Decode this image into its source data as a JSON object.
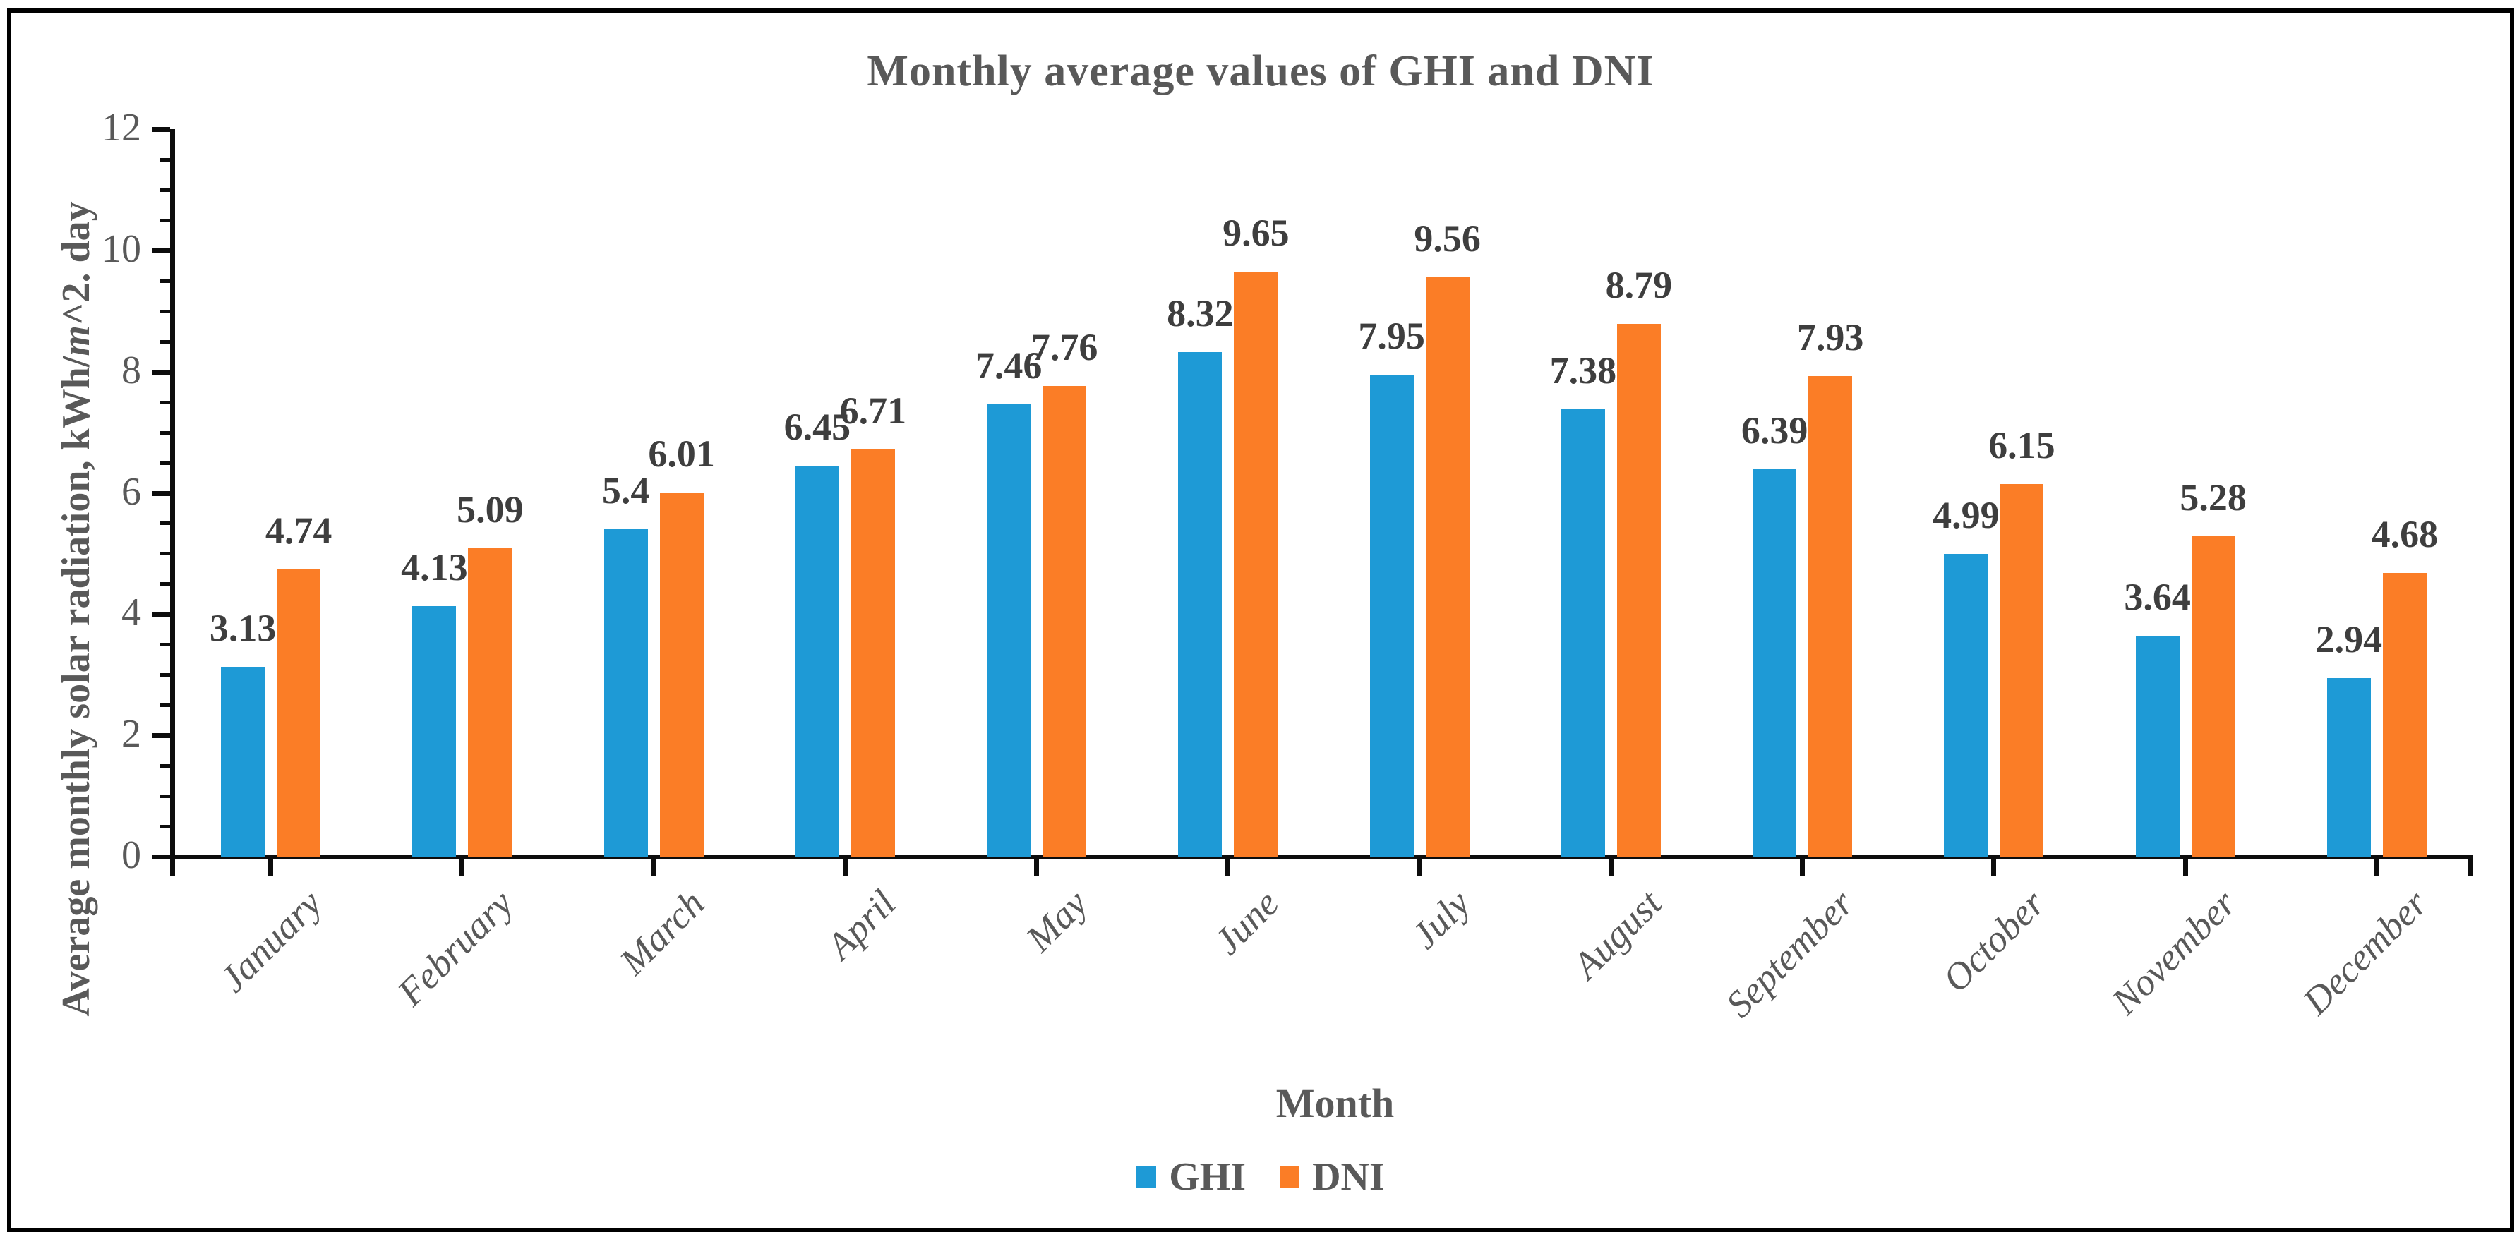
{
  "chart_data": {
    "type": "bar",
    "title": "Monthly average values of GHI and DNI",
    "categories": [
      "January",
      "February",
      "March",
      "April",
      "May",
      "June",
      "July",
      "August",
      "September",
      "October",
      "November",
      "December"
    ],
    "series": [
      {
        "name": "GHI",
        "color": "#1E9AD6",
        "values": [
          3.13,
          4.13,
          5.4,
          6.45,
          7.46,
          8.32,
          7.95,
          7.38,
          6.39,
          4.99,
          3.64,
          2.94
        ],
        "labels": [
          "3.13",
          "4.13",
          "5.4",
          "6.45",
          "7.46",
          "8.32",
          "7.95",
          "7.38",
          "6.39",
          "4.99",
          "3.64",
          "2.94"
        ]
      },
      {
        "name": "DNI",
        "color": "#FB7D26",
        "values": [
          4.74,
          5.09,
          6.01,
          6.71,
          7.76,
          9.65,
          9.56,
          8.79,
          7.93,
          6.15,
          5.28,
          4.68
        ],
        "labels": [
          "4.74",
          "5.09",
          "6.01",
          "6.71",
          "7.76",
          "9.65",
          "9.56",
          "8.79",
          "7.93",
          "6.15",
          "5.28",
          "4.68"
        ]
      }
    ],
    "xlabel": "Month",
    "ylabel": {
      "prefix": "Average monthly solar radiation, kWh/",
      "italic": "m",
      "suffix": "^2. day"
    },
    "ylim": [
      0,
      12
    ],
    "y_major_step": 2,
    "y_minor_step": 0.5,
    "y_tick_labels": [
      "0",
      "2",
      "4",
      "6",
      "8",
      "10",
      "12"
    ],
    "legend": [
      {
        "label": "GHI",
        "color": "#1E9AD6"
      },
      {
        "label": "DNI",
        "color": "#FB7D26"
      }
    ],
    "legend_position": "bottom",
    "grid": false
  },
  "colors": {
    "axis": "#0d0d0d",
    "title_text": "#595959",
    "tick_text": "#595959",
    "value_label_text": "#3e3e3e",
    "frame_border": "#000000"
  }
}
